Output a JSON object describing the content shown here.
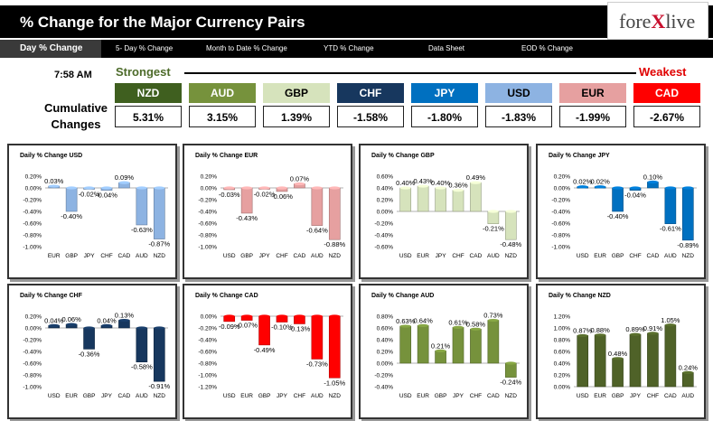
{
  "header": {
    "title": "% Change for the Major Currency Pairs",
    "logo_left": "fore",
    "logo_x": "X",
    "logo_right": "live"
  },
  "nav": {
    "active": "Day % Change",
    "items": [
      "5- Day % Change",
      "Month to Date % Change",
      "YTD % Change",
      "Data Sheet",
      "EOD % Change"
    ]
  },
  "summary": {
    "time": "7:58 AM",
    "strongest": "Strongest",
    "weakest": "Weakest",
    "cumulative_label": "Cumulative Changes",
    "tiles": [
      {
        "code": "NZD",
        "value": "5.31%",
        "color": "#3f5f1f",
        "text": "#ffffff"
      },
      {
        "code": "AUD",
        "value": "3.15%",
        "color": "#76923c",
        "text": "#ffffff"
      },
      {
        "code": "GBP",
        "value": "1.39%",
        "color": "#d6e3bc",
        "text": "#000000"
      },
      {
        "code": "CHF",
        "value": "-1.58%",
        "color": "#17375e",
        "text": "#ffffff"
      },
      {
        "code": "JPY",
        "value": "-1.80%",
        "color": "#0070c0",
        "text": "#ffffff"
      },
      {
        "code": "USD",
        "value": "-1.83%",
        "color": "#8db3e2",
        "text": "#000000"
      },
      {
        "code": "EUR",
        "value": "-1.99%",
        "color": "#e6a0a0",
        "text": "#000000"
      },
      {
        "code": "CAD",
        "value": "-2.67%",
        "color": "#ff0000",
        "text": "#ffffff"
      }
    ]
  },
  "chart_data": [
    {
      "type": "bar",
      "title": "Daily % Change USD",
      "categories": [
        "EUR",
        "GBP",
        "JPY",
        "CHF",
        "CAD",
        "AUD",
        "NZD"
      ],
      "values": [
        0.03,
        -0.4,
        -0.02,
        -0.04,
        0.09,
        -0.63,
        -0.87
      ],
      "labels": [
        "0.03%",
        "-0.40%",
        "-0.02%",
        "-0.04%",
        "0.09%",
        "-0.63%",
        "-0.87%"
      ],
      "ylim": [
        -1.0,
        0.2
      ],
      "ticks": [
        "0.20%",
        "0.00%",
        "-0.20%",
        "-0.40%",
        "-0.60%",
        "-0.80%",
        "-1.00%"
      ],
      "color": "#8db3e2"
    },
    {
      "type": "bar",
      "title": "Daily % Change EUR",
      "categories": [
        "USD",
        "GBP",
        "JPY",
        "CHF",
        "CAD",
        "AUD",
        "NZD"
      ],
      "values": [
        -0.03,
        -0.43,
        -0.02,
        -0.06,
        0.07,
        -0.64,
        -0.88
      ],
      "labels": [
        "-0.03%",
        "-0.43%",
        "-0.02%",
        "-0.06%",
        "0.07%",
        "-0.64%",
        "-0.88%"
      ],
      "ylim": [
        -1.0,
        0.2
      ],
      "ticks": [
        "0.20%",
        "0.00%",
        "-0.20%",
        "-0.40%",
        "-0.60%",
        "-0.80%",
        "-1.00%"
      ],
      "color": "#e6a0a0"
    },
    {
      "type": "bar",
      "title": "Daily % Change GBP",
      "categories": [
        "USD",
        "EUR",
        "JPY",
        "CHF",
        "CAD",
        "AUD",
        "NZD"
      ],
      "values": [
        0.4,
        0.43,
        0.4,
        0.36,
        0.49,
        -0.21,
        -0.48
      ],
      "labels": [
        "0.40%",
        "0.43%",
        "0.40%",
        "0.36%",
        "0.49%",
        "-0.21%",
        "-0.48%"
      ],
      "ylim": [
        -0.6,
        0.6
      ],
      "ticks": [
        "0.60%",
        "0.40%",
        "0.20%",
        "0.00%",
        "-0.20%",
        "-0.40%",
        "-0.60%"
      ],
      "color": "#d6e3bc"
    },
    {
      "type": "bar",
      "title": "Daily % Change JPY",
      "categories": [
        "USD",
        "EUR",
        "GBP",
        "CHF",
        "CAD",
        "AUD",
        "NZD"
      ],
      "values": [
        0.02,
        0.02,
        -0.4,
        -0.04,
        0.1,
        -0.61,
        -0.89
      ],
      "labels": [
        "0.02%",
        "0.02%",
        "-0.40%",
        "-0.04%",
        "0.10%",
        "-0.61%",
        "-0.89%"
      ],
      "ylim": [
        -1.0,
        0.2
      ],
      "ticks": [
        "0.20%",
        "0.00%",
        "-0.20%",
        "-0.40%",
        "-0.60%",
        "-0.80%",
        "-1.00%"
      ],
      "color": "#0070c0"
    },
    {
      "type": "bar",
      "title": "Daily % Change CHF",
      "categories": [
        "USD",
        "EUR",
        "GBP",
        "JPY",
        "CAD",
        "AUD",
        "NZD"
      ],
      "values": [
        0.04,
        0.06,
        -0.36,
        0.04,
        0.13,
        -0.58,
        -0.91
      ],
      "labels": [
        "0.04%",
        "0.06%",
        "-0.36%",
        "0.04%",
        "0.13%",
        "-0.58%",
        "-0.91%"
      ],
      "ylim": [
        -1.0,
        0.2
      ],
      "ticks": [
        "0.20%",
        "0.00%",
        "-0.20%",
        "-0.40%",
        "-0.60%",
        "-0.80%",
        "-1.00%"
      ],
      "color": "#17375e"
    },
    {
      "type": "bar",
      "title": "Daily % Change CAD",
      "categories": [
        "USD",
        "EUR",
        "GBP",
        "JPY",
        "CHF",
        "AUD",
        "NZD"
      ],
      "values": [
        -0.09,
        -0.07,
        -0.49,
        -0.1,
        -0.13,
        -0.73,
        -1.05
      ],
      "labels": [
        "-0.09%",
        "-0.07%",
        "-0.49%",
        "-0.10%",
        "-0.13%",
        "-0.73%",
        "-1.05%"
      ],
      "ylim": [
        -1.2,
        0.0
      ],
      "ticks": [
        "0.00%",
        "-0.20%",
        "-0.40%",
        "-0.60%",
        "-0.80%",
        "-1.00%",
        "-1.20%"
      ],
      "color": "#ff0000"
    },
    {
      "type": "bar",
      "title": "Daily % Change AUD",
      "categories": [
        "USD",
        "EUR",
        "GBP",
        "JPY",
        "CHF",
        "CAD",
        "NZD"
      ],
      "values": [
        0.63,
        0.64,
        0.21,
        0.61,
        0.58,
        0.73,
        -0.24
      ],
      "labels": [
        "0.63%",
        "0.64%",
        "0.21%",
        "0.61%",
        "0.58%",
        "0.73%",
        "-0.24%"
      ],
      "ylim": [
        -0.4,
        0.8
      ],
      "ticks": [
        "0.80%",
        "0.60%",
        "0.40%",
        "0.20%",
        "0.00%",
        "-0.20%",
        "-0.40%"
      ],
      "color": "#76923c"
    },
    {
      "type": "bar",
      "title": "Daily % Change NZD",
      "categories": [
        "USD",
        "EUR",
        "GBP",
        "JPY",
        "CHF",
        "CAD",
        "AUD"
      ],
      "values": [
        0.87,
        0.88,
        0.48,
        0.89,
        0.91,
        1.05,
        0.24
      ],
      "labels": [
        "0.87%",
        "0.88%",
        "0.48%",
        "0.89%",
        "0.91%",
        "1.05%",
        "0.24%"
      ],
      "ylim": [
        0.0,
        1.2
      ],
      "ticks": [
        "1.20%",
        "1.00%",
        "0.80%",
        "0.60%",
        "0.40%",
        "0.20%",
        "0.00%"
      ],
      "color": "#4f6228"
    }
  ]
}
